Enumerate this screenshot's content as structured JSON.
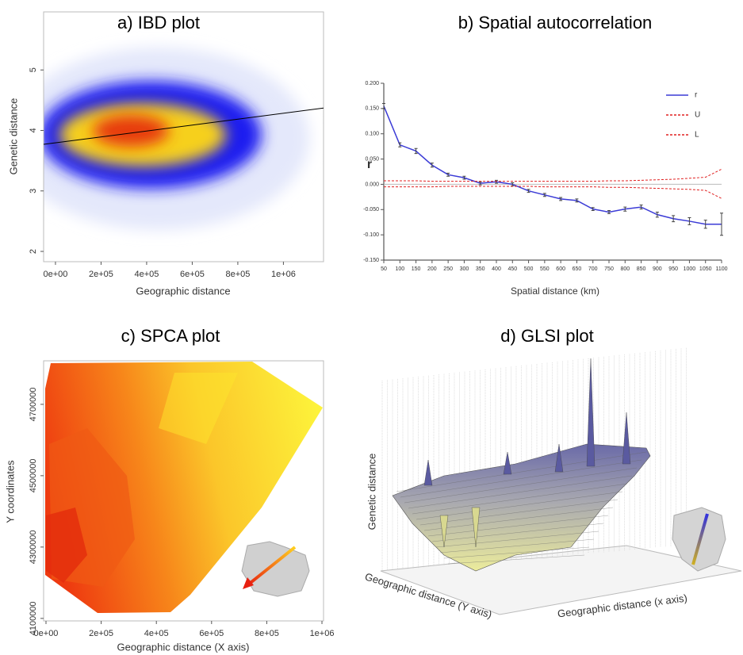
{
  "chart_data": [
    {
      "type": "density",
      "title": "a) IBD plot",
      "xlabel": "Geographic distance",
      "ylabel": "Genetic distance",
      "xlim": [
        -52000,
        1176000
      ],
      "ylim": [
        1.83,
        5.96
      ],
      "xticks": [
        {
          "value": 0,
          "label": "0e+00"
        },
        {
          "value": 200000,
          "label": "2e+05"
        },
        {
          "value": 400000,
          "label": "4e+05"
        },
        {
          "value": 600000,
          "label": "6e+05"
        },
        {
          "value": 800000,
          "label": "8e+05"
        },
        {
          "value": 1000000,
          "label": "1e+06"
        }
      ],
      "yticks": [
        2,
        3,
        4,
        5
      ],
      "fit_line": {
        "x": [
          -52000,
          1176000
        ],
        "y": [
          3.77,
          4.37
        ],
        "color": "#000000"
      }
    },
    {
      "type": "line",
      "title": "b) Spatial autocorrelation",
      "xlabel": "Spatial distance (km)",
      "ylabel": "r",
      "x": [
        50,
        100,
        150,
        200,
        250,
        300,
        350,
        400,
        450,
        500,
        550,
        600,
        650,
        700,
        750,
        800,
        850,
        900,
        950,
        1000,
        1050,
        1100
      ],
      "xlim": [
        50,
        1100
      ],
      "xticks": [
        50,
        100,
        150,
        200,
        250,
        300,
        350,
        400,
        450,
        500,
        550,
        600,
        650,
        700,
        750,
        800,
        850,
        900,
        950,
        1000,
        1050,
        1100
      ],
      "ylim": [
        -0.15,
        0.2
      ],
      "yticks": [
        {
          "value": 0.2,
          "label": "0.200"
        },
        {
          "value": 0.15,
          "label": "0.150"
        },
        {
          "value": 0.1,
          "label": "0.100"
        },
        {
          "value": 0.05,
          "label": "0.050"
        },
        {
          "value": 0,
          "label": "0.000"
        },
        {
          "value": -0.05,
          "label": "-0.050"
        },
        {
          "value": -0.1,
          "label": "-0.100"
        },
        {
          "value": -0.15,
          "label": "-0.150"
        }
      ],
      "legend": "top-right",
      "series": [
        {
          "name": "r",
          "color": "#3b3bd6",
          "line_style": "solid",
          "values": [
            0.155,
            0.078,
            0.066,
            0.038,
            0.019,
            0.013,
            0.002,
            0.005,
            0.0,
            -0.013,
            -0.021,
            -0.029,
            -0.032,
            -0.049,
            -0.055,
            -0.049,
            -0.045,
            -0.06,
            -0.068,
            -0.073,
            -0.079,
            -0.079
          ],
          "errors": [
            0.005,
            0.004,
            0.005,
            0.004,
            0.003,
            0.003,
            0.003,
            0.003,
            0.003,
            0.003,
            0.003,
            0.003,
            0.003,
            0.003,
            0.003,
            0.004,
            0.004,
            0.005,
            0.006,
            0.007,
            0.008,
            0.022
          ]
        },
        {
          "name": "U",
          "color": "#e02020",
          "line_style": "dashed",
          "values": [
            0.007,
            0.007,
            0.007,
            0.006,
            0.006,
            0.006,
            0.006,
            0.006,
            0.006,
            0.006,
            0.006,
            0.006,
            0.006,
            0.006,
            0.007,
            0.007,
            0.008,
            0.009,
            0.01,
            0.012,
            0.014,
            0.03
          ]
        },
        {
          "name": "L",
          "color": "#e02020",
          "line_style": "dashed",
          "values": [
            -0.005,
            -0.005,
            -0.005,
            -0.005,
            -0.004,
            -0.004,
            -0.004,
            -0.004,
            -0.004,
            -0.004,
            -0.005,
            -0.005,
            -0.005,
            -0.005,
            -0.006,
            -0.006,
            -0.007,
            -0.008,
            -0.009,
            -0.01,
            -0.012,
            -0.028
          ]
        }
      ]
    },
    {
      "type": "contour",
      "title": "c) SPCA plot",
      "xlabel": "Geographic distance (X axis)",
      "ylabel": "Y coordinates",
      "xlim": [
        -8600,
        1005700
      ],
      "ylim": [
        4093000,
        4822000
      ],
      "xticks": [
        {
          "value": 0,
          "label": "0e+00"
        },
        {
          "value": 200000,
          "label": "2e+05"
        },
        {
          "value": 400000,
          "label": "4e+05"
        },
        {
          "value": 600000,
          "label": "6e+05"
        },
        {
          "value": 800000,
          "label": "8e+05"
        },
        {
          "value": 1000000,
          "label": "1e+06"
        }
      ],
      "yticks": [
        4100000,
        4300000,
        4500000,
        4700000
      ]
    },
    {
      "type": "surface",
      "title": "d) GLSI plot",
      "zlabel": "Genetic distance",
      "ylabel": "Geographic distance (Y axis)",
      "xlabel": "Geographic distance (x axis)"
    }
  ]
}
